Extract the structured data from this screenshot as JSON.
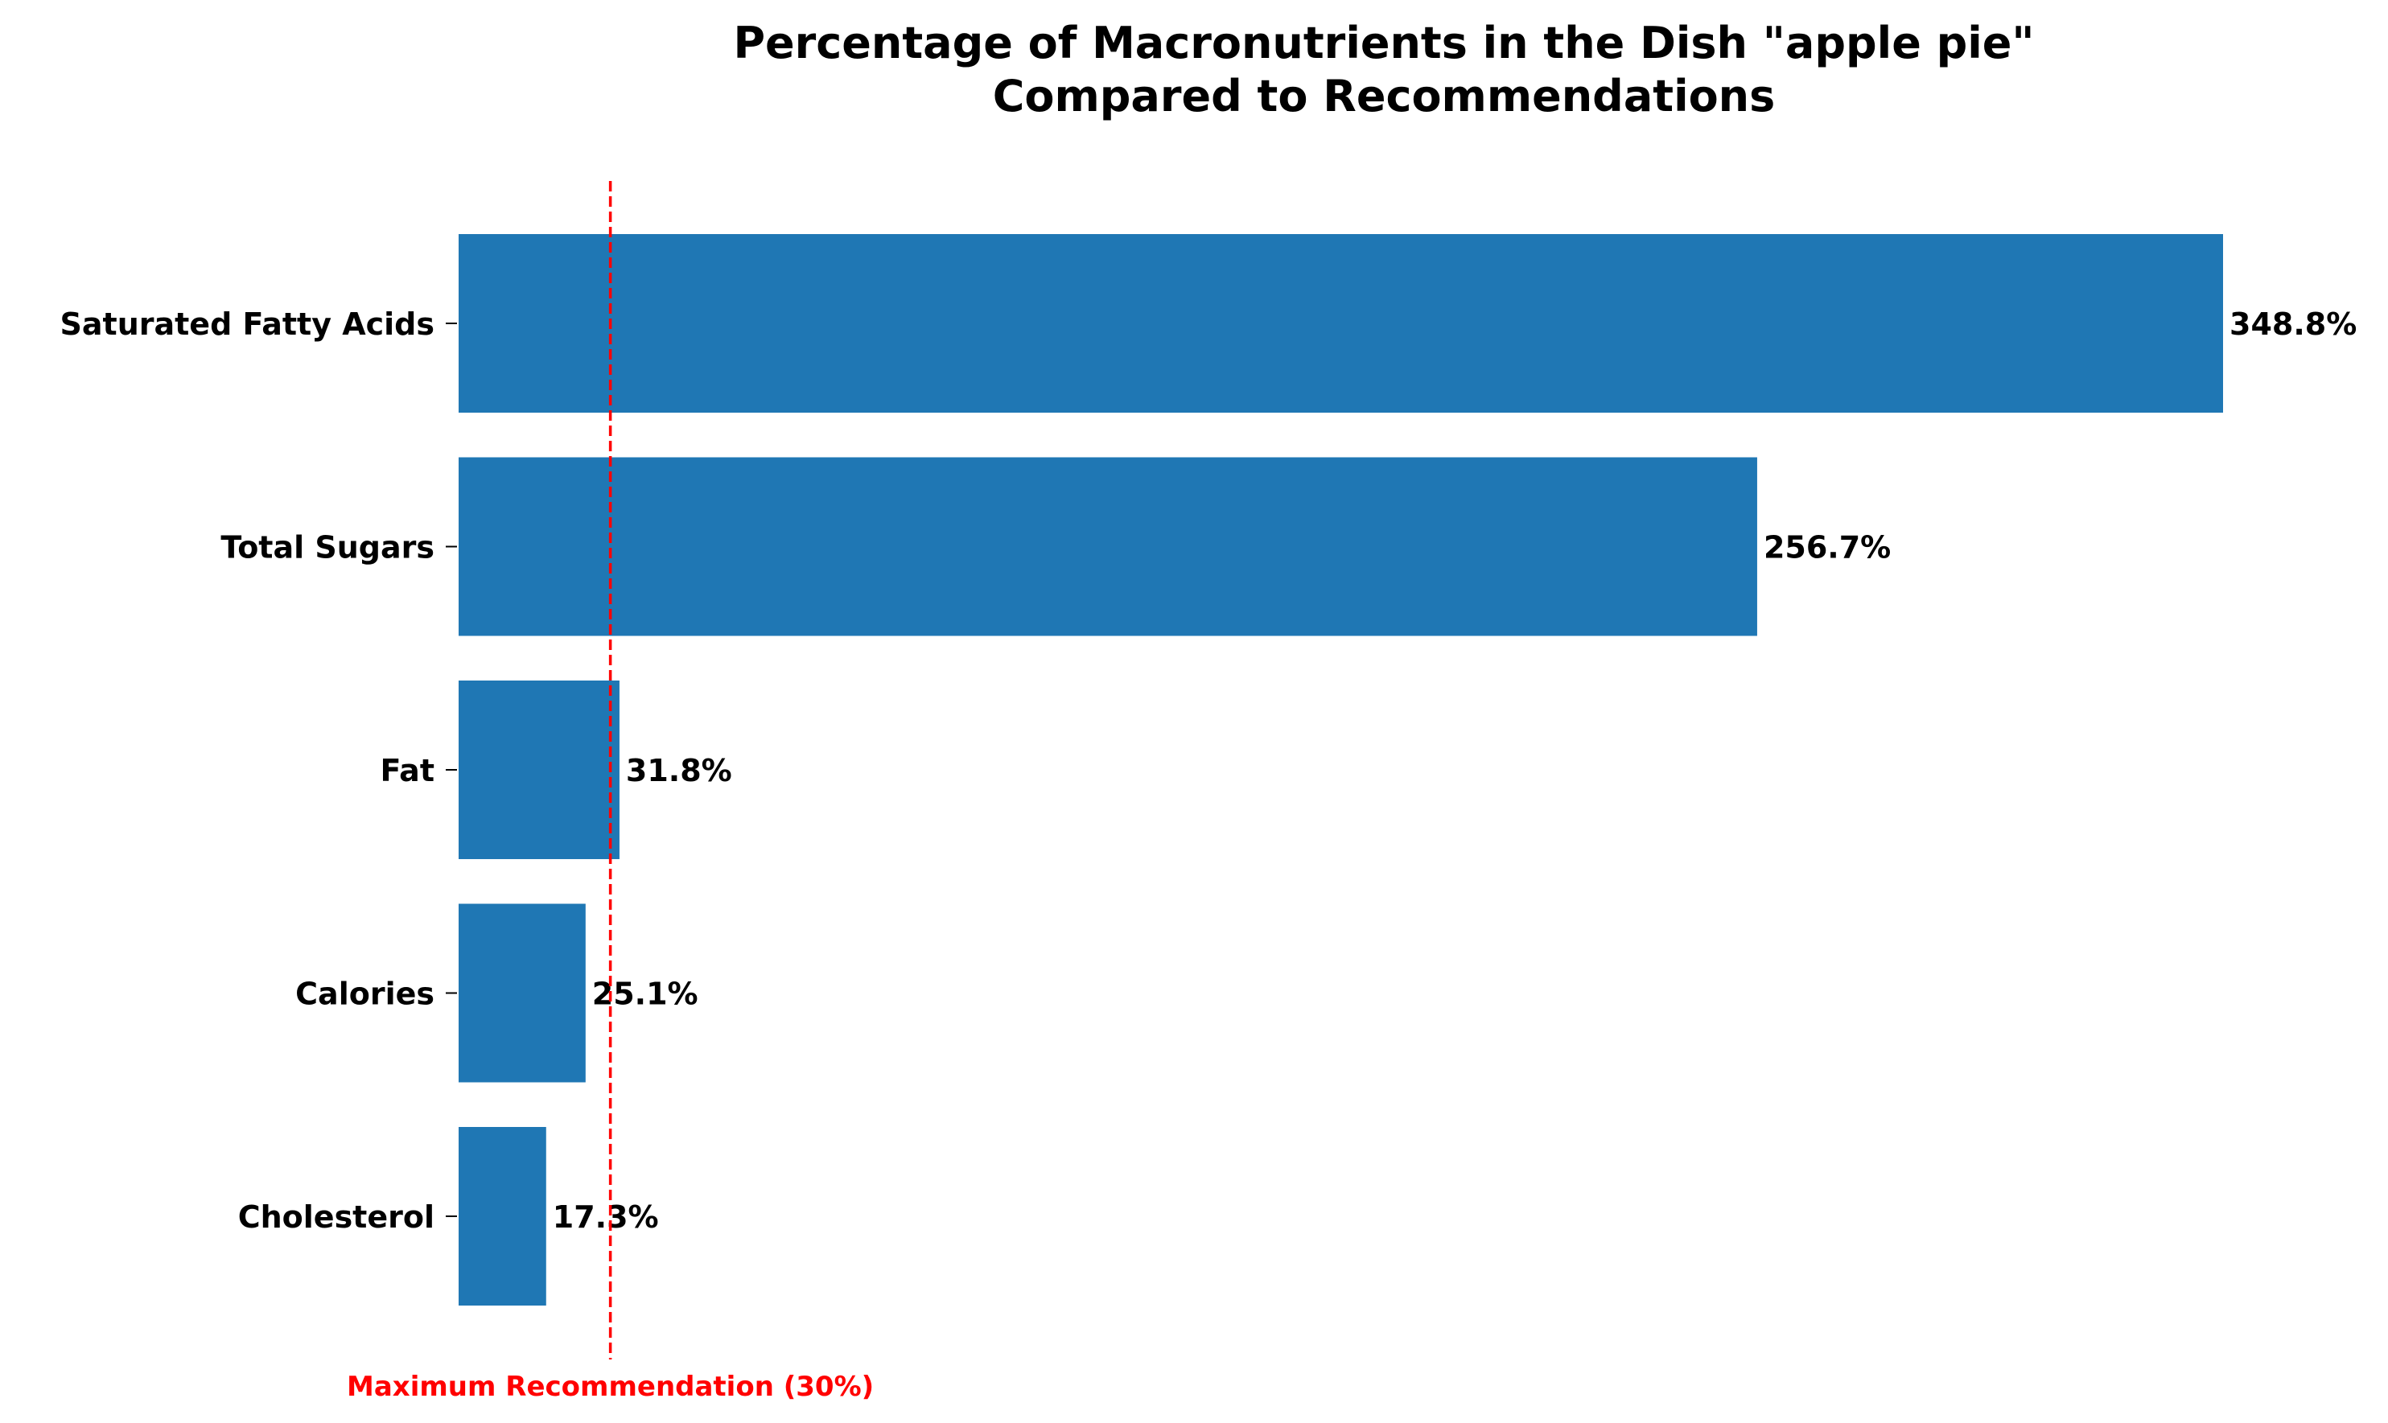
{
  "chart_data": {
    "type": "bar",
    "orientation": "horizontal",
    "title_lines": [
      "Percentage of Macronutrients in the Dish \"apple pie\"",
      "Compared to Recommendations"
    ],
    "categories": [
      "Saturated Fatty Acids",
      "Total Sugars",
      "Fat",
      "Calories",
      "Cholesterol"
    ],
    "values": [
      348.8,
      256.7,
      31.8,
      25.1,
      17.3
    ],
    "value_labels": [
      "348.8%",
      "256.7%",
      "31.8%",
      "25.1%",
      "17.3%"
    ],
    "xlim": [
      0,
      348.8
    ],
    "grid": false,
    "bar_color": "#1f77b4",
    "reference_line": {
      "value": 30,
      "label": "Maximum Recommendation (30%)",
      "color": "#ff0000",
      "style": "dashed"
    }
  }
}
